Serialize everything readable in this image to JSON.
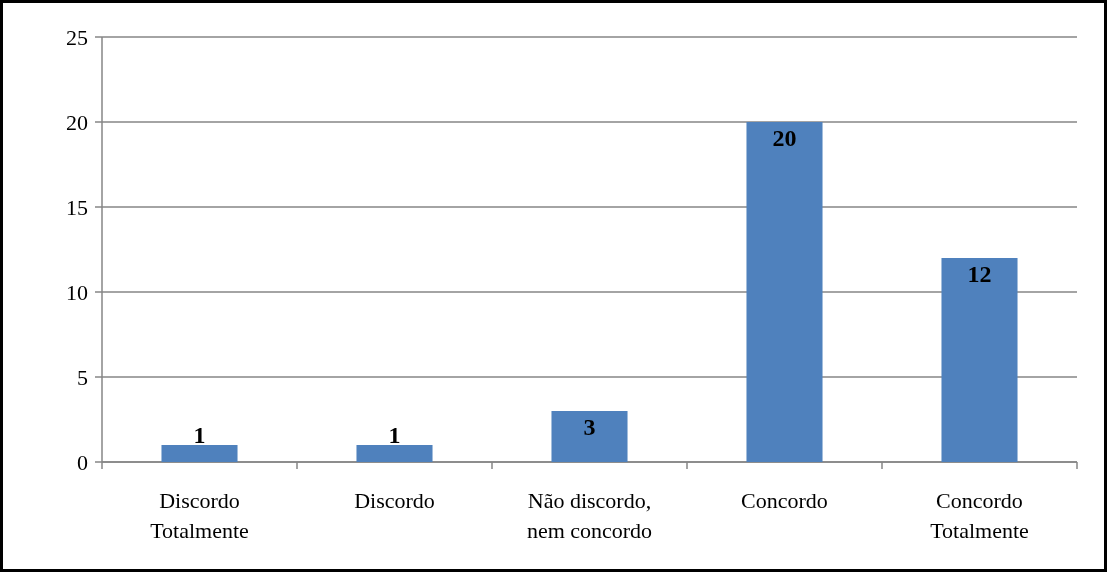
{
  "chart_data": {
    "type": "bar",
    "categories": [
      "Discordo Totalmente",
      "Discordo",
      "Não discordo, nem concordo",
      "Concordo",
      "Concordo Totalmente"
    ],
    "values": [
      1,
      1,
      3,
      20,
      12
    ],
    "color": "#4f81bd",
    "ylim": [
      0,
      25
    ],
    "yticks": [
      0,
      5,
      10,
      15,
      20,
      25
    ],
    "grid": "y",
    "data_labels": true
  }
}
